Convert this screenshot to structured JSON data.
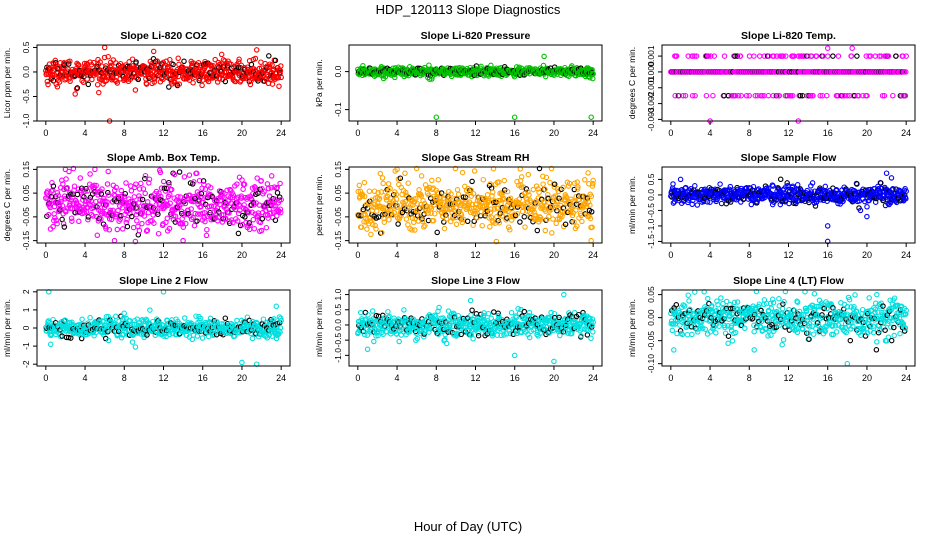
{
  "figure": {
    "title": "HDP_120113  Slope Diagnostics",
    "xlabel": "Hour of Day (UTC)"
  },
  "chart_data": [
    {
      "type": "scatter",
      "title": "Slope Li-820 CO2",
      "ylabel": "Licor ppm per min.",
      "xlim": [
        -0.9,
        24.9
      ],
      "ylim": [
        -1.0,
        0.55
      ],
      "xticks": [
        "0",
        "4",
        "8",
        "12",
        "16",
        "20",
        "24"
      ],
      "yticks": [
        {
          "v": -1.0,
          "label": "-1.0"
        },
        {
          "v": -0.5,
          "label": "-0.5"
        },
        {
          "v": 0.0,
          "label": "0.0"
        },
        {
          "v": 0.5,
          "label": "0.5"
        }
      ],
      "color": "#ff0000",
      "count": 650,
      "center": 0.0,
      "spread": 0.12,
      "outliers": [
        [
          6.5,
          -1.0
        ],
        [
          6.0,
          0.5
        ],
        [
          21.5,
          0.45
        ],
        [
          11.0,
          0.42
        ],
        [
          3.0,
          -0.45
        ]
      ]
    },
    {
      "type": "scatter",
      "title": "Slope Li-820 Pressure",
      "ylabel": "kPa per min.",
      "xlim": [
        -0.9,
        24.9
      ],
      "ylim": [
        -0.13,
        0.07
      ],
      "xticks": [
        "0",
        "4",
        "8",
        "12",
        "16",
        "20",
        "24"
      ],
      "yticks": [
        {
          "v": -0.1,
          "label": "-0.1"
        },
        {
          "v": 0.0,
          "label": "0.0"
        }
      ],
      "color": "#00c000",
      "count": 650,
      "center": 0.0,
      "spread": 0.006,
      "outliers": [
        [
          8.0,
          -0.12
        ],
        [
          16.0,
          -0.12
        ],
        [
          23.8,
          -0.12
        ],
        [
          19.0,
          0.04
        ]
      ]
    },
    {
      "type": "scatter",
      "title": "Slope Li-820 Temp.",
      "ylabel": "degrees C per min.",
      "xlim": [
        -0.9,
        24.9
      ],
      "ylim": [
        -0.0031,
        0.0017
      ],
      "xticks": [
        "0",
        "4",
        "8",
        "12",
        "16",
        "20",
        "24"
      ],
      "yticks": [
        {
          "v": -0.003,
          "label": "-0.003"
        },
        {
          "v": -0.002,
          "label": "-0.002"
        },
        {
          "v": -0.001,
          "label": "-0.001"
        },
        {
          "v": 0.0,
          "label": "0.000"
        },
        {
          "v": 0.001,
          "label": "0.001"
        }
      ],
      "color": "#ff00ff",
      "count": 650,
      "quantized": [
        0.0,
        0.0,
        0.0,
        0.0,
        0.0,
        0.0,
        0.0,
        -0.0015,
        0.001
      ],
      "outliers": [
        [
          4.0,
          -0.0031
        ],
        [
          13.0,
          -0.0031
        ],
        [
          1.5,
          -0.0015
        ],
        [
          18.5,
          0.0015
        ],
        [
          16.0,
          0.0015
        ]
      ]
    },
    {
      "type": "scatter",
      "title": "Slope Amb. Box Temp.",
      "ylabel": "degrees C per min.",
      "xlim": [
        -0.9,
        24.9
      ],
      "ylim": [
        -0.16,
        0.16
      ],
      "xticks": [
        "0",
        "4",
        "8",
        "12",
        "16",
        "20",
        "24"
      ],
      "yticks": [
        {
          "v": -0.15,
          "label": "-0.15"
        },
        {
          "v": -0.05,
          "label": "-0.05"
        },
        {
          "v": 0.05,
          "label": "0.05"
        },
        {
          "v": 0.15,
          "label": "0.15"
        }
      ],
      "color": "#ff00ff",
      "count": 650,
      "center": 0.0,
      "spread": 0.055,
      "outliers": [
        [
          7.0,
          -0.15
        ],
        [
          5.0,
          0.15
        ],
        [
          14.0,
          -0.15
        ],
        [
          2.0,
          0.15
        ]
      ]
    },
    {
      "type": "scatter",
      "title": "Slope Gas Stream RH",
      "ylabel": "percent per min.",
      "xlim": [
        -0.9,
        24.9
      ],
      "ylim": [
        -0.16,
        0.16
      ],
      "xticks": [
        "0",
        "4",
        "8",
        "12",
        "16",
        "20",
        "24"
      ],
      "yticks": [
        {
          "v": -0.15,
          "label": "-0.15"
        },
        {
          "v": -0.05,
          "label": "-0.05"
        },
        {
          "v": 0.05,
          "label": "0.05"
        },
        {
          "v": 0.15,
          "label": "0.15"
        }
      ],
      "color": "#ffa500",
      "count": 650,
      "center": 0.0,
      "spread": 0.055,
      "outliers": [
        [
          23.8,
          -0.15
        ],
        [
          4.0,
          0.15
        ]
      ]
    },
    {
      "type": "scatter",
      "title": "Slope Sample Flow",
      "ylabel": "ml/min per min.",
      "xlim": [
        -0.9,
        24.9
      ],
      "ylim": [
        -1.55,
        0.9
      ],
      "xticks": [
        "0",
        "4",
        "8",
        "12",
        "16",
        "20",
        "24"
      ],
      "yticks": [
        {
          "v": -1.5,
          "label": "-1.5"
        },
        {
          "v": -1.0,
          "label": "-1.0"
        },
        {
          "v": -0.5,
          "label": "-0.5"
        },
        {
          "v": 0.0,
          "label": "0.0"
        },
        {
          "v": 0.5,
          "label": "0.5"
        }
      ],
      "color": "#0000ff",
      "count": 650,
      "center": 0.0,
      "spread": 0.14,
      "outliers": [
        [
          16.0,
          -1.5
        ],
        [
          16.0,
          -1.0
        ],
        [
          22.0,
          0.7
        ],
        [
          22.5,
          0.55
        ],
        [
          20.0,
          -0.7
        ],
        [
          1.0,
          0.5
        ]
      ]
    },
    {
      "type": "scatter",
      "title": "Slope Line 2 Flow",
      "ylabel": "ml/min per min.",
      "xlim": [
        -0.9,
        24.9
      ],
      "ylim": [
        -2.1,
        2.1
      ],
      "xticks": [
        "0",
        "4",
        "8",
        "12",
        "16",
        "20",
        "24"
      ],
      "yticks": [
        {
          "v": -2.0,
          "label": "-2"
        },
        {
          "v": -1.0,
          "label": "-1"
        },
        {
          "v": 0.0,
          "label": "0"
        },
        {
          "v": 1.0,
          "label": "1"
        },
        {
          "v": 2.0,
          "label": "2"
        }
      ],
      "color": "#00e0e0",
      "count": 650,
      "center": 0.0,
      "spread": 0.25,
      "outliers": [
        [
          0.3,
          2.0
        ],
        [
          12.0,
          2.0
        ],
        [
          20.0,
          -1.9
        ],
        [
          21.5,
          -2.0
        ],
        [
          0.5,
          -0.9
        ],
        [
          23.5,
          1.2
        ]
      ]
    },
    {
      "type": "scatter",
      "title": "Slope Line 3 Flow",
      "ylabel": "ml/min per min.",
      "xlim": [
        -0.9,
        24.9
      ],
      "ylim": [
        -1.35,
        1.15
      ],
      "xticks": [
        "0",
        "4",
        "8",
        "12",
        "16",
        "20",
        "24"
      ],
      "yticks": [
        {
          "v": -1.0,
          "label": "-1.0"
        },
        {
          "v": -0.5,
          "label": "-0.5"
        },
        {
          "v": 0.0,
          "label": "0.0"
        },
        {
          "v": 0.5,
          "label": "0.5"
        },
        {
          "v": 1.0,
          "label": "1.0"
        }
      ],
      "color": "#00e0e0",
      "count": 650,
      "center": 0.0,
      "spread": 0.2,
      "outliers": [
        [
          20.0,
          -1.2
        ],
        [
          21.0,
          1.0
        ],
        [
          16.0,
          -1.0
        ],
        [
          1.0,
          -0.8
        ],
        [
          11.5,
          0.8
        ]
      ]
    },
    {
      "type": "scatter",
      "title": "Slope Line 4 (LT) Flow",
      "ylabel": "ml/min per min.",
      "xlim": [
        -0.9,
        24.9
      ],
      "ylim": [
        -0.105,
        0.06
      ],
      "xticks": [
        "0",
        "4",
        "8",
        "12",
        "16",
        "20",
        "24"
      ],
      "yticks": [
        {
          "v": -0.1,
          "label": "-0.10"
        },
        {
          "v": -0.05,
          "label": "-0.05"
        },
        {
          "v": 0.0,
          "label": "0.00"
        },
        {
          "v": 0.05,
          "label": "0.05"
        }
      ],
      "color": "#00e0e0",
      "count": 650,
      "center": 0.0,
      "spread": 0.02,
      "outliers": [
        [
          18.0,
          -0.1
        ],
        [
          21.0,
          0.05
        ],
        [
          8.5,
          -0.07
        ],
        [
          0.3,
          -0.07
        ]
      ]
    }
  ]
}
